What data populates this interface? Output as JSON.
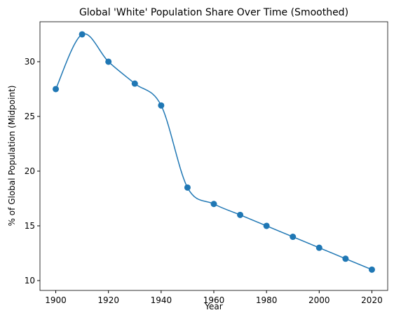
{
  "chart_data": {
    "type": "line",
    "title": "Global 'White' Population Share Over Time (Smoothed)",
    "x_label": "Year",
    "y_label": "% of Global Population (Midpoint)",
    "x": [
      1900,
      1910,
      1920,
      1930,
      1940,
      1950,
      1960,
      1970,
      1980,
      1990,
      2000,
      2010,
      2020
    ],
    "series": [
      {
        "name": "Global 'White' Population Share",
        "color": "#1f77b4",
        "values": [
          27.5,
          32.5,
          30,
          28,
          26,
          18.5,
          17,
          16,
          15,
          14,
          13,
          12,
          11
        ]
      }
    ],
    "smoothed": true,
    "markers": true,
    "xlim": [
      1894,
      2026
    ],
    "xticks": [
      1900,
      1920,
      1940,
      1960,
      1980,
      2000,
      2020
    ],
    "ylim": [
      9.1,
      33.65
    ],
    "yticks": [
      10,
      15,
      20,
      25,
      30
    ]
  }
}
